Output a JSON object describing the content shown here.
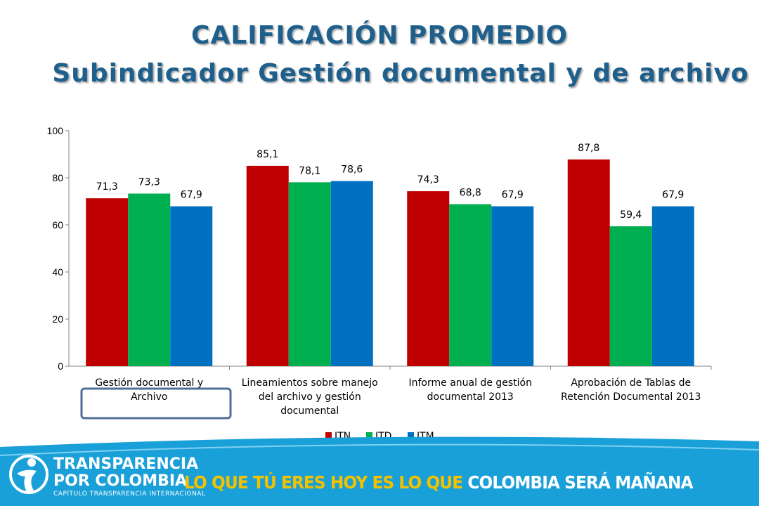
{
  "header": {
    "title": "CALIFICACIÓN PROMEDIO",
    "subtitle": "Subindicador Gestión documental y de archivo"
  },
  "colors": {
    "title": "#1f5f8c",
    "ITN": "#c00000",
    "ITD": "#00b050",
    "ITM": "#0070c0",
    "footer": "#1aa0d8",
    "slogan_accent": "#f2c100"
  },
  "chart_data": {
    "type": "bar",
    "categories": [
      [
        "Gestión documental y",
        "Archivo"
      ],
      [
        "Lineamientos sobre manejo",
        "del archivo y gestión",
        "documental"
      ],
      [
        "Informe anual de gestión",
        "documental 2013"
      ],
      [
        "Aprobación de Tablas de",
        "Retención Documental 2013"
      ]
    ],
    "series": [
      {
        "name": "ITN",
        "values": [
          71.3,
          85.1,
          74.3,
          87.8
        ],
        "labels": [
          "71,3",
          "85,1",
          "74,3",
          "87,8"
        ]
      },
      {
        "name": "ITD",
        "values": [
          73.3,
          78.1,
          68.8,
          59.4
        ],
        "labels": [
          "73,3",
          "78,1",
          "68,8",
          "59,4"
        ]
      },
      {
        "name": "ITM",
        "values": [
          67.9,
          78.6,
          67.9,
          67.9
        ],
        "labels": [
          "67,9",
          "78,6",
          "67,9",
          "67,9"
        ]
      }
    ],
    "ylim": [
      0,
      100
    ],
    "yticks": [
      0,
      20,
      40,
      60,
      80,
      100
    ],
    "legend_position": "bottom",
    "highlighted_category": 0
  },
  "footer": {
    "logo_line1": "TRANSPARENCIA",
    "logo_line2": "POR COLOMBIA",
    "logo_line3": "CAPÍTULO TRANSPARENCIA INTERNACIONAL",
    "slogan_part1": "LO QUE TÚ ERES HOY ES LO QUE ",
    "slogan_part2": "COLOMBIA SERÁ MAÑANA"
  }
}
